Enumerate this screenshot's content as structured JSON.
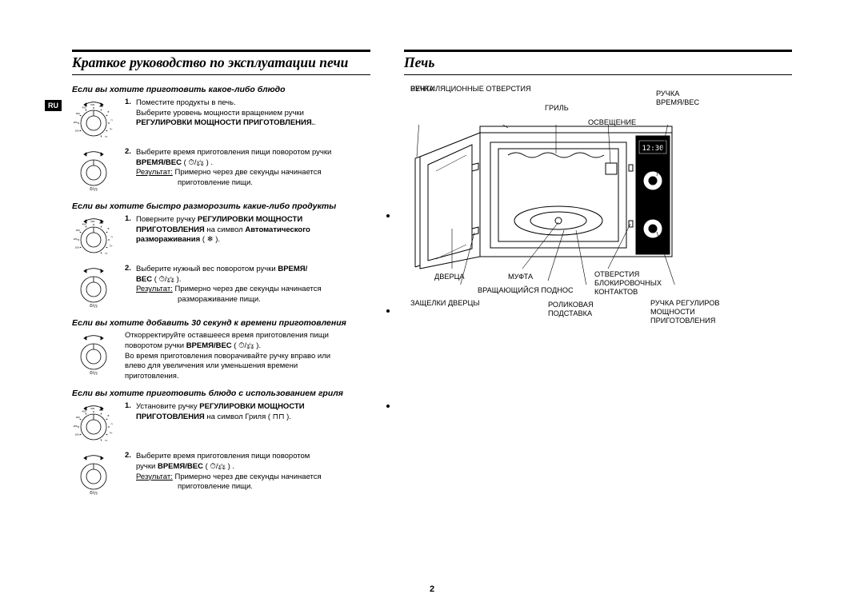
{
  "page": {
    "lang_badge": "RU",
    "page_number": "2",
    "colors": {
      "text": "#000000",
      "background": "#ffffff",
      "rule": "#000000",
      "badge_bg": "#000000",
      "badge_fg": "#ffffff"
    }
  },
  "left": {
    "title": "Краткое руководство по эксплуатации печи",
    "sections": [
      {
        "heading": "Если вы хотите приготовить какое-либо блюдо",
        "steps": [
          {
            "dial": "power",
            "num": "1.",
            "lines": [
              {
                "t": "Поместите продукты в печь."
              },
              {
                "t": "Выберите уровень мощности вращением ручки"
              },
              {
                "t": "РЕГУЛИРОВКИ МОЩНОСТИ ПРИГОТОВЛЕНИЯ",
                "bold": true,
                "suffix": "."
              }
            ]
          },
          {
            "dial": "time",
            "num": "2.",
            "lines": [
              {
                "t": "Выберите время приготовления пищи поворотом ручки"
              },
              {
                "prefix_bold": "ВРЕМЯ/ВЕС",
                "t": " ( ⏱/⚖ ) ."
              },
              {
                "label_u": "Результат:",
                "t": " Примерно через две секунды начинается"
              },
              {
                "indent": true,
                "t": "приготовление пищи."
              }
            ]
          }
        ]
      },
      {
        "heading": "Если вы хотите быстро разморозить какие-либо продукты",
        "steps": [
          {
            "dial": "power",
            "num": "1.",
            "lines": [
              {
                "t": "Поверните ручку ",
                "suffix_bold": "РЕГУЛИРОВКИ МОЩНОСТИ"
              },
              {
                "prefix_bold": "ПРИГОТОВЛЕНИЯ",
                "t": " на символ ",
                "suffix_bold": "Автоматического"
              },
              {
                "prefix_bold": "размораживания",
                "t": " ( ❄ )."
              }
            ]
          },
          {
            "dial": "time",
            "num": "2.",
            "lines": [
              {
                "t": "Выберите нужный вес поворотом ручки ",
                "suffix_bold": "ВРЕМЯ/"
              },
              {
                "prefix_bold": "ВЕС",
                "t": " ( ⏱/⚖ )."
              },
              {
                "label_u": "Результат:",
                "t": " Примерно через две секунды начинается"
              },
              {
                "indent": true,
                "t": "размораживание пищи."
              }
            ]
          }
        ]
      },
      {
        "heading": "Если вы хотите добавить 30 секунд к времени приготовления",
        "steps": [
          {
            "dial": "time",
            "num": "",
            "lines": [
              {
                "t": "Откорректируйте оставшееся время приготовления пищи"
              },
              {
                "t": "поворотом ручки ",
                "mid_bold": "ВРЕМЯ/ВЕС",
                "suffix": " ( ⏱/⚖ )."
              },
              {
                "t": "Во время приготовления поворачивайте ручку вправо или"
              },
              {
                "t": "влево для увеличения или уменьшения времени"
              },
              {
                "t": "приготовления."
              }
            ]
          }
        ]
      },
      {
        "heading": "Если вы хотите приготовить блюдо с использованием гриля",
        "steps": [
          {
            "dial": "power",
            "num": "1.",
            "lines": [
              {
                "t": "Установите ручку ",
                "suffix_bold": "РЕГУЛИРОВКИ МОЩНОСТИ"
              },
              {
                "prefix_bold": "ПРИГОТОВЛЕНИЯ",
                "t": " на символ Гриля ( ⊓⊓ )."
              }
            ]
          },
          {
            "dial": "time",
            "num": "2.",
            "lines": [
              {
                "t": "Выберите время приготовления пищи поворотом"
              },
              {
                "t": "ручки ",
                "mid_bold": "ВРЕМЯ/ВЕС",
                "suffix": " ( ⏱/⚖ ) ."
              },
              {
                "label_u": "Результат:",
                "t": " Примерно через две секунды начинается"
              },
              {
                "indent": true,
                "t": "приготовление пищи."
              }
            ]
          }
        ]
      }
    ]
  },
  "right": {
    "title": "Печь",
    "labels": {
      "vent": "ВЕНТИЛЯЦИОННЫЕ ОТВЕРСТИЯ",
      "handle": "РУЧКА",
      "grill": "ГРИЛЬ",
      "time_knob_1": "РУЧКА",
      "time_knob_2": "ВРЕМЯ/ВЕС",
      "light": "ОСВЕЩЕНИЕ",
      "door": "ДВЕРЦА",
      "coupler": "МУФТА",
      "lock_holes_1": "ОТВЕРСТИЯ",
      "lock_holes_2": "БЛОКИРОВОЧНЫХ",
      "lock_holes_3": "КОНТАКТОВ",
      "turntable": "ВРАЩАЮЩИЙСЯ ПОДНОС",
      "latches": "ЗАЩЕЛКИ ДВЕРЦЫ",
      "roller_1": "РОЛИКОВАЯ",
      "roller_2": "ПОДСТАВКА",
      "power_knob_1": "РУЧКА РЕГУЛИРОВ",
      "power_knob_2": "МОЩНОСТИ",
      "power_knob_3": "ПРИГОТОВЛЕНИЯ",
      "display_time": "12:30"
    },
    "diagram_style": {
      "stroke": "#000000",
      "stroke_width": 1,
      "panel_fill": "#000000",
      "display_bg": "#000000",
      "display_segments": "#ffffff"
    }
  }
}
